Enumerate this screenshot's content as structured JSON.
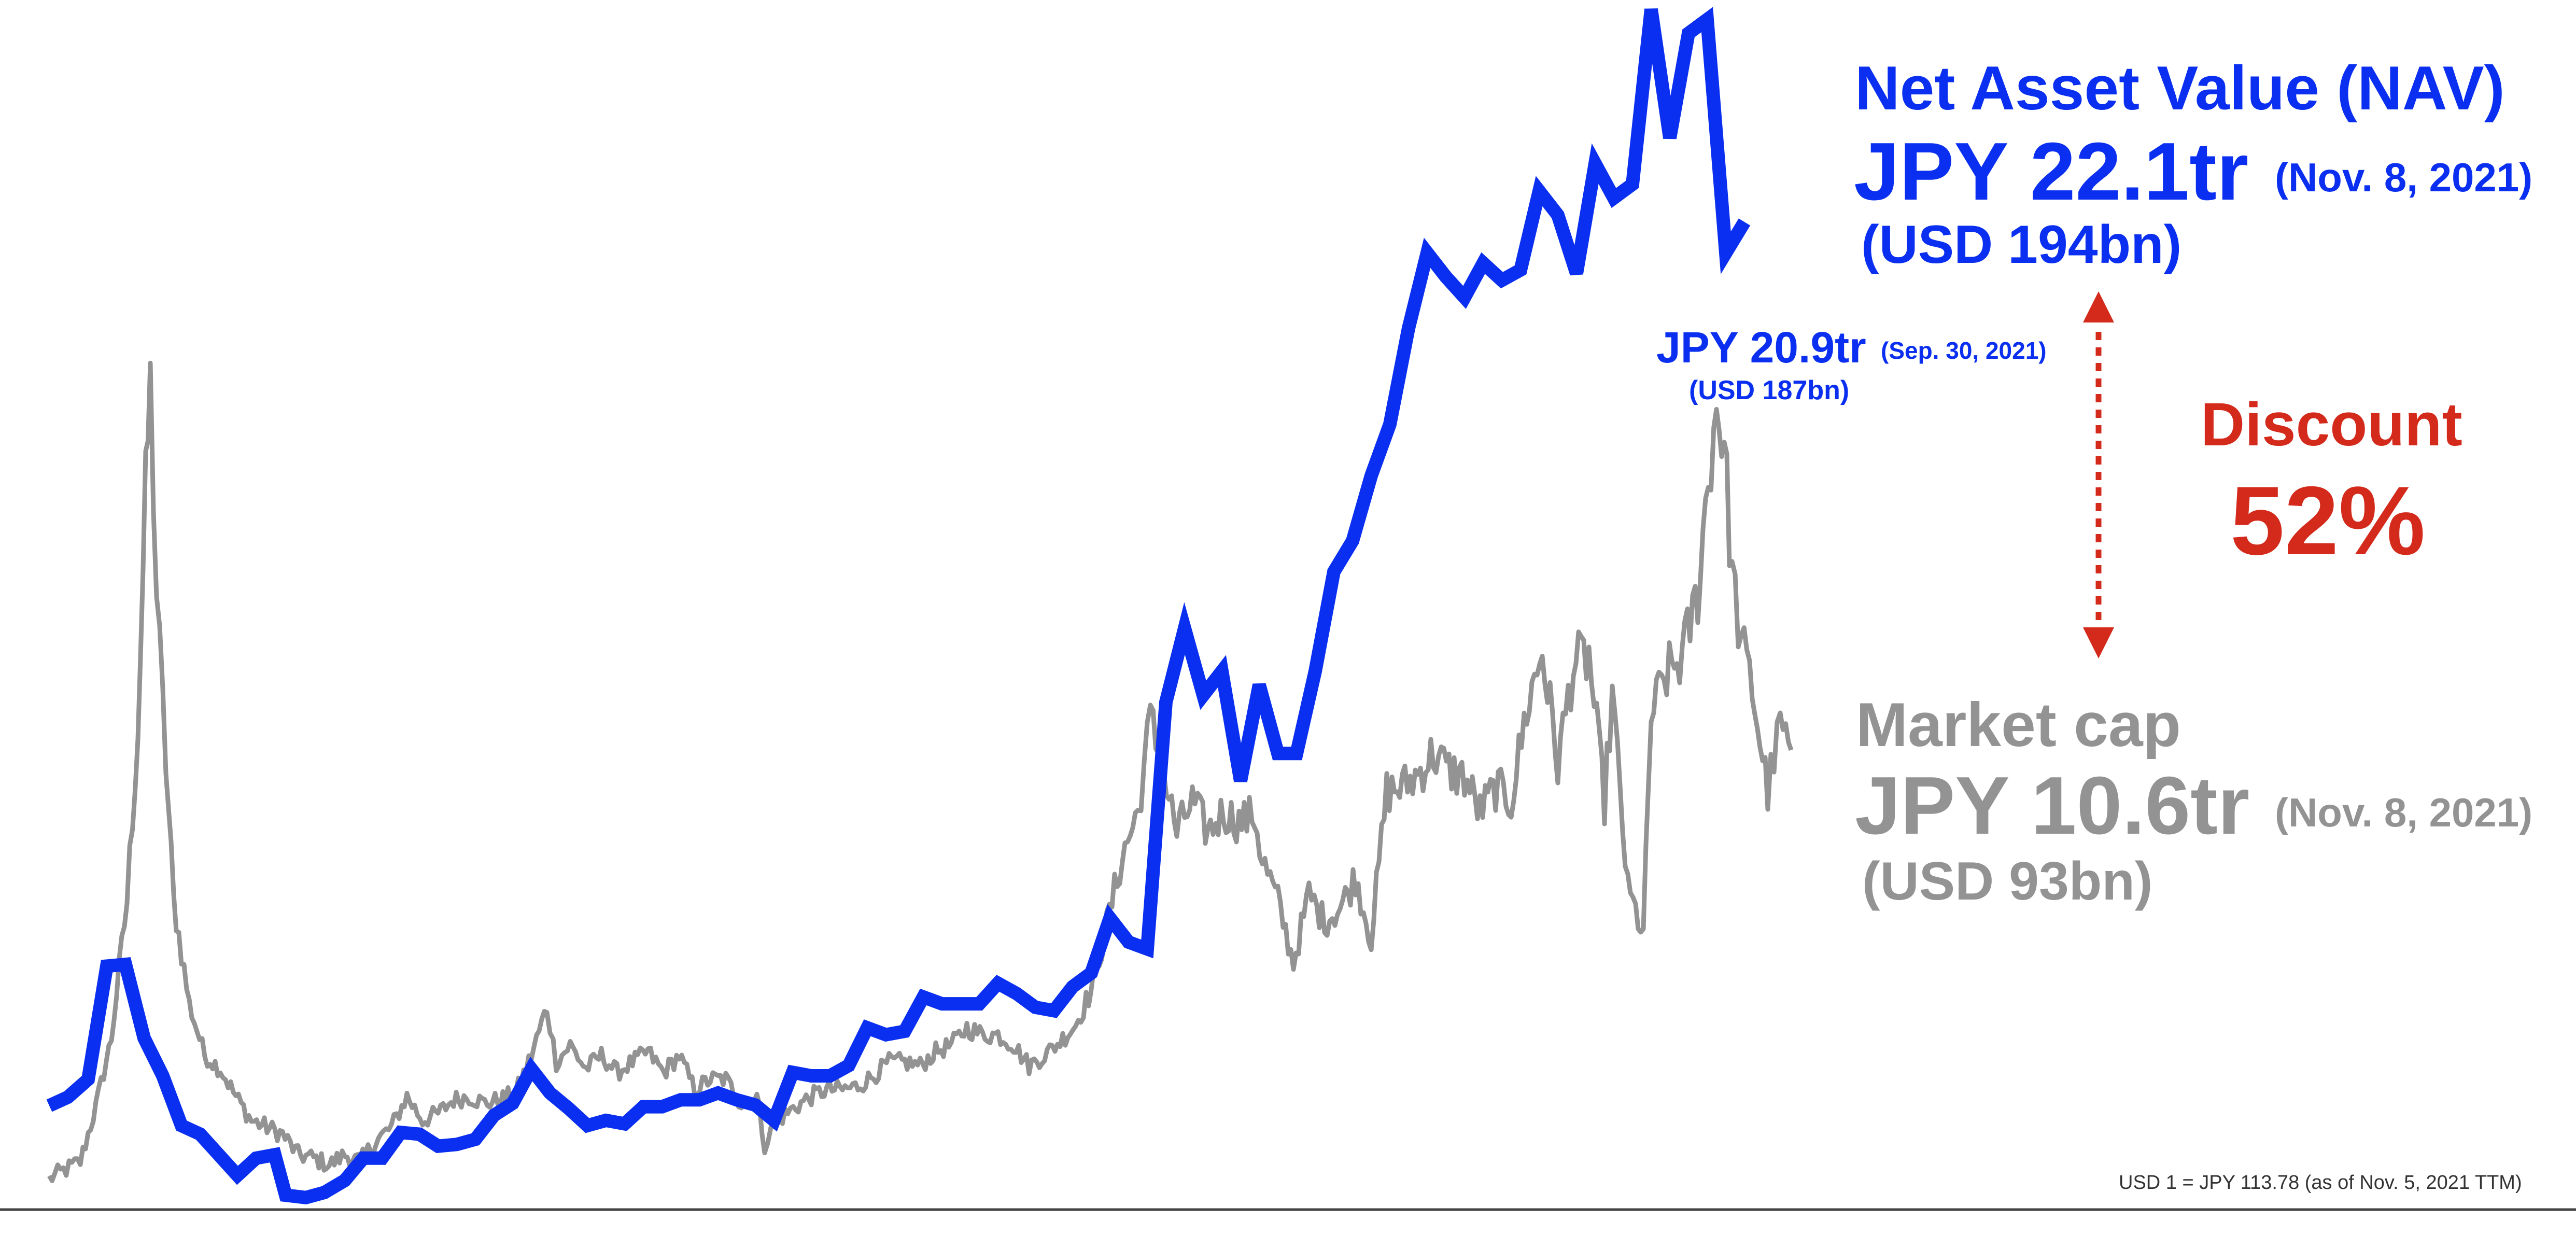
{
  "chart_data": {
    "type": "line",
    "series": [
      {
        "name": "Net Asset Value (NAV)",
        "color": "#0a2ff0",
        "line": "thick stepped line",
        "points": [
          [
            0.0,
            3.03
          ],
          [
            1.2,
            3.28
          ],
          [
            2.5,
            3.8
          ],
          [
            3.7,
            7.1
          ],
          [
            4.9,
            7.15
          ],
          [
            6.1,
            5.0
          ],
          [
            7.3,
            3.9
          ],
          [
            8.5,
            2.45
          ],
          [
            9.7,
            2.2
          ],
          [
            10.9,
            1.6
          ],
          [
            12.1,
            1.0
          ],
          [
            13.3,
            1.5
          ],
          [
            14.5,
            1.6
          ],
          [
            15.2,
            0.42
          ],
          [
            16.5,
            0.35
          ],
          [
            17.7,
            0.5
          ],
          [
            19.0,
            0.85
          ],
          [
            20.2,
            1.5
          ],
          [
            21.4,
            1.5
          ],
          [
            22.6,
            2.25
          ],
          [
            23.8,
            2.2
          ],
          [
            25.0,
            1.85
          ],
          [
            26.2,
            1.9
          ],
          [
            27.4,
            2.05
          ],
          [
            28.6,
            2.75
          ],
          [
            29.8,
            3.1
          ],
          [
            31.0,
            4.1
          ],
          [
            32.2,
            3.4
          ],
          [
            33.4,
            2.95
          ],
          [
            34.6,
            2.45
          ],
          [
            35.8,
            2.6
          ],
          [
            37.0,
            2.5
          ],
          [
            38.2,
            3.0
          ],
          [
            39.4,
            3.0
          ],
          [
            40.6,
            3.2
          ],
          [
            41.8,
            3.2
          ],
          [
            43.0,
            3.4
          ],
          [
            44.2,
            3.2
          ],
          [
            45.4,
            3.05
          ],
          [
            46.6,
            2.6
          ],
          [
            47.8,
            4.0
          ],
          [
            49.0,
            3.9
          ],
          [
            50.2,
            3.9
          ],
          [
            51.4,
            4.2
          ],
          [
            52.6,
            5.3
          ],
          [
            53.8,
            5.1
          ],
          [
            55.0,
            5.2
          ],
          [
            56.2,
            6.2
          ],
          [
            57.4,
            6.0
          ],
          [
            58.6,
            6.0
          ],
          [
            59.8,
            6.0
          ],
          [
            61.0,
            6.6
          ],
          [
            62.2,
            6.3
          ],
          [
            63.4,
            5.9
          ],
          [
            64.6,
            5.8
          ],
          [
            65.8,
            6.5
          ],
          [
            67.0,
            6.9
          ],
          [
            68.2,
            8.5
          ],
          [
            69.4,
            7.8
          ],
          [
            70.6,
            7.6
          ],
          [
            71.8,
            14.8
          ],
          [
            73.0,
            16.95
          ],
          [
            74.2,
            15.0
          ],
          [
            75.4,
            15.7
          ],
          [
            76.6,
            12.5
          ],
          [
            77.8,
            15.3
          ],
          [
            79.0,
            13.3
          ],
          [
            80.2,
            13.3
          ],
          [
            81.4,
            15.7
          ],
          [
            82.6,
            18.6
          ],
          [
            83.8,
            19.5
          ],
          [
            85.0,
            21.4
          ],
          [
            86.2,
            22.9
          ],
          [
            87.4,
            25.7
          ],
          [
            88.6,
            27.9
          ],
          [
            89.8,
            27.2
          ],
          [
            91.0,
            26.6
          ],
          [
            92.2,
            27.6
          ],
          [
            93.4,
            27.1
          ],
          [
            94.6,
            27.4
          ],
          [
            95.8,
            29.7
          ],
          [
            97.0,
            29.0
          ],
          [
            98.2,
            27.3
          ],
          [
            99.4,
            30.5
          ],
          [
            100.6,
            29.5
          ],
          [
            101.8,
            29.9
          ],
          [
            103.0,
            35.0
          ],
          [
            104.2,
            31.25
          ],
          [
            105.4,
            34.3
          ],
          [
            106.6,
            34.7
          ],
          [
            107.8,
            27.9
          ],
          [
            109.0,
            28.8
          ]
        ]
      },
      {
        "name": "Market cap",
        "color": "#939393",
        "line": "noisy daily line",
        "points": [
          [
            0.0,
            0.9
          ],
          [
            2.0,
            1.4
          ],
          [
            3.0,
            3.0
          ],
          [
            4.0,
            5.0
          ],
          [
            5.0,
            9.0
          ],
          [
            5.7,
            14.0
          ],
          [
            6.2,
            21.0
          ],
          [
            6.5,
            24.0
          ],
          [
            6.9,
            18.0
          ],
          [
            7.5,
            13.0
          ],
          [
            8.0,
            9.0
          ],
          [
            9.0,
            6.0
          ],
          [
            10.0,
            4.5
          ],
          [
            11.0,
            4.1
          ],
          [
            12.0,
            3.3
          ],
          [
            13.0,
            2.6
          ],
          [
            14.0,
            2.4
          ],
          [
            15.0,
            2.2
          ],
          [
            16.0,
            1.6
          ],
          [
            17.0,
            1.5
          ],
          [
            18.0,
            1.3
          ],
          [
            19.0,
            1.6
          ],
          [
            20.0,
            1.4
          ],
          [
            21.0,
            2.0
          ],
          [
            22.0,
            2.4
          ],
          [
            23.0,
            3.3
          ],
          [
            24.0,
            2.6
          ],
          [
            25.0,
            2.8
          ],
          [
            26.0,
            3.2
          ],
          [
            27.0,
            3.3
          ],
          [
            28.0,
            3.1
          ],
          [
            29.0,
            3.2
          ],
          [
            30.0,
            3.4
          ],
          [
            31.0,
            4.5
          ],
          [
            32.0,
            5.9
          ],
          [
            32.6,
            4.3
          ],
          [
            33.5,
            4.8
          ],
          [
            34.5,
            4.1
          ],
          [
            35.5,
            4.5
          ],
          [
            36.5,
            4.0
          ],
          [
            37.5,
            4.3
          ],
          [
            38.5,
            4.6
          ],
          [
            39.5,
            4.0
          ],
          [
            40.5,
            4.5
          ],
          [
            41.5,
            3.5
          ],
          [
            42.5,
            3.8
          ],
          [
            43.5,
            3.8
          ],
          [
            44.5,
            3.1
          ],
          [
            45.5,
            3.3
          ],
          [
            46.0,
            1.9
          ],
          [
            46.8,
            2.6
          ],
          [
            48.0,
            3.0
          ],
          [
            49.0,
            3.3
          ],
          [
            50.0,
            3.5
          ],
          [
            51.0,
            3.5
          ],
          [
            52.0,
            3.6
          ],
          [
            53.0,
            3.9
          ],
          [
            54.0,
            4.3
          ],
          [
            55.0,
            4.3
          ],
          [
            56.0,
            4.2
          ],
          [
            57.0,
            4.6
          ],
          [
            58.0,
            4.8
          ],
          [
            59.0,
            5.3
          ],
          [
            60.0,
            5.1
          ],
          [
            61.0,
            5.1
          ],
          [
            62.0,
            4.8
          ],
          [
            63.0,
            4.2
          ],
          [
            64.0,
            4.5
          ],
          [
            65.0,
            4.9
          ],
          [
            66.0,
            5.4
          ],
          [
            67.0,
            6.4
          ],
          [
            68.0,
            8.3
          ],
          [
            69.0,
            10.3
          ],
          [
            70.0,
            11.6
          ],
          [
            70.8,
            14.3
          ],
          [
            71.5,
            13.0
          ],
          [
            72.5,
            11.0
          ],
          [
            73.5,
            11.9
          ],
          [
            74.5,
            11.0
          ],
          [
            75.5,
            11.6
          ],
          [
            76.5,
            11.3
          ],
          [
            77.5,
            11.5
          ],
          [
            78.0,
            10.2
          ],
          [
            79.0,
            9.0
          ],
          [
            80.0,
            7.2
          ],
          [
            81.0,
            9.2
          ],
          [
            82.0,
            8.4
          ],
          [
            83.0,
            8.8
          ],
          [
            84.0,
            9.7
          ],
          [
            85.0,
            7.9
          ],
          [
            86.0,
            12.2
          ],
          [
            87.0,
            12.3
          ],
          [
            88.0,
            12.7
          ],
          [
            89.0,
            13.3
          ],
          [
            90.0,
            12.8
          ],
          [
            91.0,
            12.6
          ],
          [
            92.0,
            11.6
          ],
          [
            93.0,
            12.3
          ],
          [
            94.0,
            11.9
          ],
          [
            95.0,
            14.6
          ],
          [
            96.0,
            16.3
          ],
          [
            97.0,
            13.0
          ],
          [
            98.0,
            15.9
          ],
          [
            99.0,
            16.1
          ],
          [
            100.0,
            11.9
          ],
          [
            100.5,
            15.0
          ],
          [
            101.5,
            9.3
          ],
          [
            102.0,
            8.7
          ],
          [
            102.5,
            8.0
          ],
          [
            103.0,
            14.4
          ],
          [
            104.0,
            15.6
          ],
          [
            105.0,
            16.1
          ],
          [
            106.0,
            18.0
          ],
          [
            106.5,
            20.5
          ],
          [
            107.2,
            23.5
          ],
          [
            107.7,
            22.3
          ],
          [
            108.2,
            18.5
          ],
          [
            108.8,
            16.5
          ],
          [
            109.5,
            15.2
          ],
          [
            110.5,
            12.2
          ],
          [
            111.3,
            14.1
          ],
          [
            112.0,
            13.4
          ]
        ]
      }
    ],
    "xlim": [
      0,
      115
    ],
    "ylim": [
      0,
      35
    ],
    "grid": false,
    "axes": "baseline only, no tick labels",
    "annotations": {
      "nav_title": "Net Asset Value (NAV)",
      "nav_value": "JPY 22.1tr",
      "nav_date": "(Nov. 8, 2021)",
      "nav_usd": "(USD 194bn)",
      "nav_sep_value": "JPY 20.9tr",
      "nav_sep_date": "(Sep. 30, 2021)",
      "nav_sep_usd": "(USD 187bn)",
      "discount_label": "Discount",
      "discount_value": "52%",
      "mcap_title": "Market cap",
      "mcap_value": "JPY 10.6tr",
      "mcap_date": "(Nov. 8, 2021)",
      "mcap_usd": "(USD 93bn)",
      "footnote": "USD 1 = JPY 113.78 (as of Nov. 5, 2021 TTM)"
    },
    "colors": {
      "nav": "#0a2ff0",
      "market_cap": "#939393",
      "discount": "#d42a1c",
      "baseline": "#444444"
    }
  }
}
